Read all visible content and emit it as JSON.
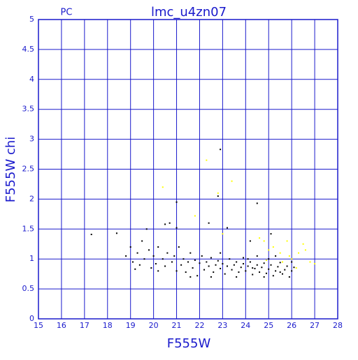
{
  "chart_data": {
    "type": "scatter",
    "title": "lmc_u4zn07",
    "subtitle": "PC",
    "x_label": "F555W",
    "y_label": "F555W  chi",
    "xlim": [
      15,
      28
    ],
    "ylim": [
      0,
      5
    ],
    "xticks": [
      15,
      16,
      17,
      18,
      19,
      20,
      21,
      22,
      23,
      24,
      25,
      26,
      27,
      28
    ],
    "yticks": [
      0,
      0.5,
      1,
      1.5,
      2,
      2.5,
      3,
      3.5,
      4,
      4.5,
      5
    ],
    "grid": true,
    "grid_color": "#1a1acc",
    "series": [
      {
        "color": "#000000",
        "x": [
          18.8,
          19.0,
          19.1,
          19.3,
          19.4,
          19.5,
          19.6,
          19.8,
          19.9,
          20.0,
          20.1,
          20.2,
          20.4,
          20.5,
          20.6,
          20.8,
          20.9,
          21.0,
          21.1,
          21.2,
          21.3,
          21.4,
          21.5,
          21.6,
          21.7,
          21.8,
          21.9,
          22.0,
          22.1,
          22.2,
          22.3,
          22.4,
          22.5,
          22.6,
          22.7,
          22.8,
          22.9,
          23.0,
          23.1,
          23.2,
          23.3,
          23.4,
          23.5,
          23.6,
          23.7,
          23.8,
          23.9,
          24.0,
          24.1,
          24.2,
          24.3,
          24.4,
          24.5,
          24.6,
          24.7,
          24.8,
          24.9,
          25.0,
          25.1,
          25.2,
          25.3,
          25.4,
          25.5,
          25.6,
          25.7,
          25.8,
          25.9,
          26.0,
          26.1,
          24.1,
          24.5,
          23.6,
          22.5,
          25.0,
          24.8,
          23.9,
          24.3,
          25.5,
          22.9,
          21.6,
          20.2,
          19.2,
          26.0,
          25.3,
          17.3,
          18.4,
          21.0,
          22.8,
          22.9,
          24.5,
          19.7,
          20.5,
          20.7,
          21.0,
          22.4,
          23.2,
          24.2,
          25.1
        ],
        "y": [
          1.05,
          1.2,
          0.95,
          1.1,
          0.9,
          1.3,
          1.0,
          1.15,
          0.85,
          1.05,
          0.92,
          1.2,
          1.0,
          0.88,
          1.1,
          0.95,
          1.05,
          0.8,
          1.2,
          0.9,
          1.0,
          0.78,
          0.95,
          1.1,
          0.85,
          0.98,
          0.72,
          0.93,
          1.05,
          0.82,
          0.95,
          0.88,
          1.02,
          0.78,
          0.9,
          0.97,
          0.84,
          0.92,
          0.75,
          0.88,
          1.0,
          0.82,
          0.9,
          0.95,
          0.78,
          0.86,
          0.92,
          0.8,
          0.88,
          0.95,
          0.74,
          0.84,
          0.9,
          0.78,
          0.86,
          0.93,
          0.76,
          0.83,
          0.9,
          0.72,
          0.8,
          0.87,
          0.94,
          0.75,
          0.82,
          0.88,
          0.7,
          0.8,
          0.86,
          1.0,
          1.05,
          0.7,
          0.7,
          1.0,
          0.7,
          1.02,
          0.85,
          0.78,
          1.1,
          0.7,
          0.8,
          0.83,
          0.95,
          1.05,
          1.41,
          1.43,
          1.95,
          2.05,
          2.83,
          1.93,
          1.5,
          1.58,
          1.6,
          1.52,
          1.6,
          1.52,
          1.3,
          1.42
        ]
      },
      {
        "color": "#ffff00",
        "x": [
          20.4,
          22.3,
          23.4,
          22.8,
          21.8,
          23.0,
          24.6,
          25.2,
          25.5,
          25.8,
          26.0,
          26.3,
          26.5,
          26.8,
          27.0,
          25.6,
          25.0,
          24.8,
          26.2,
          25.9,
          24.9,
          26.6
        ],
        "y": [
          2.2,
          2.65,
          2.3,
          2.1,
          1.72,
          1.42,
          1.35,
          1.2,
          1.1,
          1.3,
          1.0,
          1.1,
          1.25,
          0.95,
          0.92,
          0.95,
          1.15,
          1.3,
          0.85,
          1.05,
          0.98,
          1.15
        ]
      }
    ]
  }
}
